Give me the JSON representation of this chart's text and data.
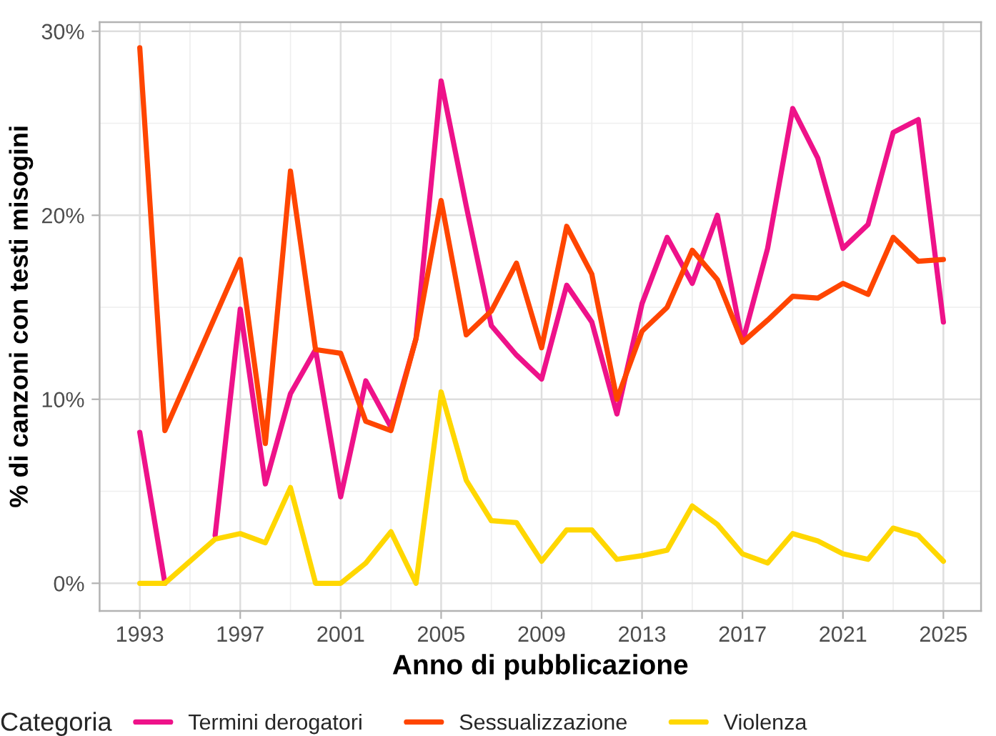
{
  "chart_data": {
    "type": "line",
    "xlabel": "Anno di pubblicazione",
    "ylabel": "% di canzoni con testi misogini",
    "legend_title": "Categoria",
    "legend": "bottom",
    "grid": true,
    "line_style": "solid",
    "marker": "none",
    "xlim": [
      1991.4,
      2026.5
    ],
    "xticks": [
      1993,
      1997,
      2001,
      2005,
      2009,
      2013,
      2017,
      2021,
      2025
    ],
    "ylim": [
      -1.5,
      30.5
    ],
    "yticks": [
      {
        "value": 0,
        "label": "0%"
      },
      {
        "value": 10,
        "label": "10%"
      },
      {
        "value": 20,
        "label": "20%"
      },
      {
        "value": 30,
        "label": "30%"
      }
    ],
    "series": [
      {
        "name": "Termini derogatori",
        "color": "#ee1289",
        "x": [
          1993,
          1994,
          1995,
          1996,
          1997,
          1998,
          1999,
          2000,
          2001,
          2002,
          2003,
          2004,
          2005,
          2006,
          2007,
          2008,
          2009,
          2010,
          2011,
          2012,
          2013,
          2014,
          2015,
          2016,
          2017,
          2018,
          2019,
          2020,
          2021,
          2022,
          2023,
          2024,
          2025
        ],
        "values": [
          8.2,
          0,
          null,
          2.6,
          14.9,
          5.4,
          10.3,
          12.7,
          4.7,
          11.0,
          8.5,
          13.3,
          27.3,
          20.5,
          14.0,
          12.4,
          11.1,
          16.2,
          14.2,
          9.2,
          15.2,
          18.8,
          16.3,
          20.0,
          13.1,
          18.2,
          25.8,
          23.1,
          18.2,
          19.5,
          24.5,
          25.2,
          14.2
        ]
      },
      {
        "name": "Sessualizzazione",
        "color": "#ff4500",
        "x": [
          1993,
          1994,
          1997,
          1998,
          1999,
          2000,
          2001,
          2002,
          2003,
          2004,
          2005,
          2006,
          2007,
          2008,
          2009,
          2010,
          2011,
          2012,
          2013,
          2014,
          2015,
          2016,
          2017,
          2018,
          2019,
          2020,
          2021,
          2022,
          2023,
          2024,
          2025
        ],
        "values": [
          29.1,
          8.3,
          17.6,
          7.6,
          22.4,
          12.7,
          12.5,
          8.8,
          8.3,
          13.3,
          20.8,
          13.5,
          14.8,
          17.4,
          12.8,
          19.4,
          16.8,
          10.0,
          13.7,
          15.0,
          18.1,
          16.5,
          13.1,
          14.3,
          15.6,
          15.5,
          16.3,
          15.7,
          18.8,
          17.5,
          17.6
        ]
      },
      {
        "name": "Violenza",
        "color": "#ffd700",
        "x": [
          1993,
          1994,
          1996,
          1997,
          1998,
          1999,
          2000,
          2001,
          2002,
          2003,
          2004,
          2005,
          2006,
          2007,
          2008,
          2009,
          2010,
          2011,
          2012,
          2013,
          2014,
          2015,
          2016,
          2017,
          2018,
          2019,
          2020,
          2021,
          2022,
          2023,
          2024,
          2025
        ],
        "values": [
          0,
          0,
          2.4,
          2.7,
          2.2,
          5.2,
          0,
          0,
          1.1,
          2.8,
          0,
          10.4,
          5.6,
          3.4,
          3.3,
          1.2,
          2.9,
          2.9,
          1.3,
          1.5,
          1.8,
          4.2,
          3.2,
          1.6,
          1.1,
          2.7,
          2.3,
          1.6,
          1.3,
          3.0,
          2.6,
          1.2
        ]
      }
    ]
  }
}
